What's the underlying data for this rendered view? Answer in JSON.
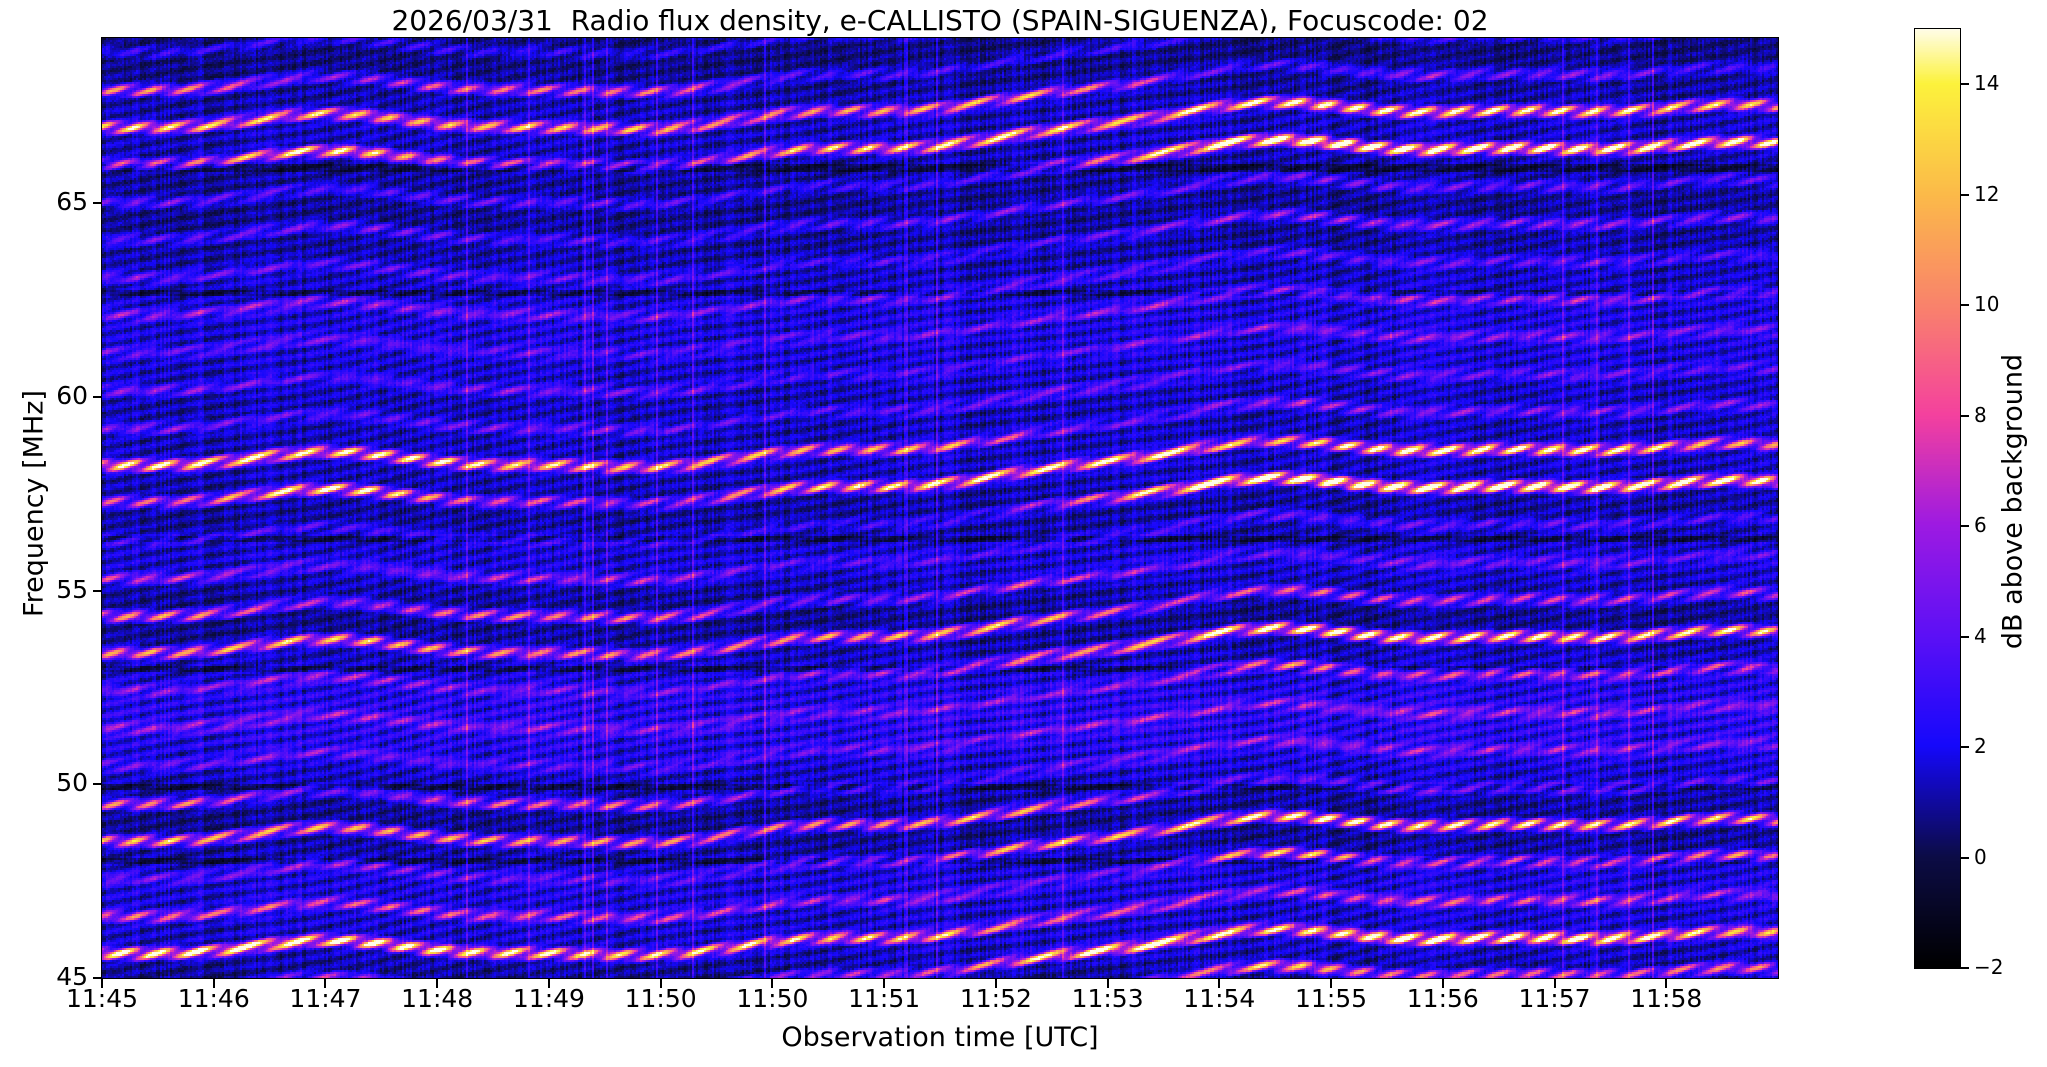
{
  "figure": {
    "background": "#ffffff"
  },
  "chart_data": {
    "type": "heatmap",
    "title": "2026/03/31  Radio flux density, e-CALLISTO (SPAIN-SIGUENZA), Focuscode: 02",
    "xlabel": "Observation time [UTC]",
    "ylabel": "Frequency [MHz]",
    "x_tick_labels": [
      "11:45",
      "11:46",
      "11:47",
      "11:48",
      "11:49",
      "11:50",
      "11:50",
      "11:51",
      "11:52",
      "11:53",
      "11:54",
      "11:55",
      "11:56",
      "11:57",
      "11:58"
    ],
    "y_tick_values": [
      65,
      60,
      55,
      50,
      45
    ],
    "y_tick_labels": [
      "65",
      "60",
      "55",
      "50",
      "45"
    ],
    "y_range": [
      45,
      69.27
    ],
    "grid": false,
    "colorbar": {
      "label": "dB above background",
      "vmin": -2,
      "vmax": 15,
      "tick_values": [
        14,
        12,
        10,
        8,
        6,
        4,
        2,
        0,
        -2
      ],
      "tick_labels": [
        "14",
        "12",
        "10",
        "8",
        "6",
        "4",
        "2",
        "0",
        "−2"
      ]
    },
    "colormap_stops": [
      [
        -2,
        "#000000"
      ],
      [
        0,
        "#0c0c46"
      ],
      [
        2,
        "#1508fb"
      ],
      [
        4,
        "#5c10f6"
      ],
      [
        6,
        "#9d1ae2"
      ],
      [
        8,
        "#f4419e"
      ],
      [
        10,
        "#f9836b"
      ],
      [
        12,
        "#fbba49"
      ],
      [
        14,
        "#fcf23c"
      ],
      [
        15,
        "#fffdea"
      ]
    ],
    "emission_bands": [
      {
        "center_mhz": 67.65,
        "halfwidth_mhz": 0.5,
        "peak_db": 9.5
      },
      {
        "center_mhz": 66.6,
        "halfwidth_mhz": 0.55,
        "peak_db": 13.0
      },
      {
        "center_mhz": 64.7,
        "halfwidth_mhz": 0.6,
        "peak_db": 2.0
      },
      {
        "center_mhz": 62.4,
        "halfwidth_mhz": 0.9,
        "peak_db": 1.6
      },
      {
        "center_mhz": 60.0,
        "halfwidth_mhz": 0.35,
        "peak_db": 2.2
      },
      {
        "center_mhz": 58.6,
        "halfwidth_mhz": 0.45,
        "peak_db": 9.5
      },
      {
        "center_mhz": 57.8,
        "halfwidth_mhz": 0.5,
        "peak_db": 13.0
      },
      {
        "center_mhz": 55.15,
        "halfwidth_mhz": 0.35,
        "peak_db": 4.5
      },
      {
        "center_mhz": 54.05,
        "halfwidth_mhz": 0.5,
        "peak_db": 11.0
      },
      {
        "center_mhz": 53.25,
        "halfwidth_mhz": 0.4,
        "peak_db": 5.5
      },
      {
        "center_mhz": 51.6,
        "halfwidth_mhz": 1.3,
        "peak_db": 1.2
      },
      {
        "center_mhz": 49.2,
        "halfwidth_mhz": 0.45,
        "peak_db": 10.0
      },
      {
        "center_mhz": 48.4,
        "halfwidth_mhz": 0.4,
        "peak_db": 8.5
      },
      {
        "center_mhz": 46.9,
        "halfwidth_mhz": 0.5,
        "peak_db": 3.0
      },
      {
        "center_mhz": 45.8,
        "halfwidth_mhz": 0.65,
        "peak_db": 13.0
      }
    ],
    "background_wash": [
      {
        "center_mhz": 51.7,
        "halfwidth_mhz": 1.8,
        "amp": 1.3
      },
      {
        "center_mhz": 61.7,
        "halfwidth_mhz": 2.4,
        "amp": 0.9
      },
      {
        "center_mhz": 55.8,
        "halfwidth_mhz": 0.9,
        "amp": 0.8
      },
      {
        "center_mhz": 47.4,
        "halfwidth_mhz": 1.0,
        "amp": 0.9
      },
      {
        "center_mhz": 66.9,
        "halfwidth_mhz": 1.4,
        "amp": 0.6
      },
      {
        "center_mhz": 58.2,
        "halfwidth_mhz": 1.2,
        "amp": 0.5
      },
      {
        "center_mhz": 45.9,
        "halfwidth_mhz": 0.8,
        "amp": 0.6
      }
    ],
    "band_seams_mhz": [
      65.95,
      62.7,
      56.35,
      53.0,
      49.95,
      48.05
    ],
    "pattern": {
      "fringe_spacing_mhz": 0.97,
      "drift_cycles": -1.15,
      "wave_terms": [
        {
          "amp_cycles": 0.42,
          "freq": 0.82,
          "phase": 0.06
        },
        {
          "amp_cycles": 0.21,
          "freq": 1.85,
          "phase": 0.52
        },
        {
          "amp_cycles": 0.118,
          "freq": 3.7,
          "phase": 0.23
        },
        {
          "amp_cycles": 0.06,
          "freq": 7.1,
          "phase": 0.8
        }
      ],
      "bead_lattice": {
        "t_cycles": 45,
        "f_cycles": 2.55,
        "wobble": 0.3
      },
      "sub_lattice": {
        "t_cycles": 27,
        "f_cycles": 3.4
      },
      "bright_column_fracs": [
        0.479,
        0.615
      ],
      "noise_seed": 1337
    }
  }
}
